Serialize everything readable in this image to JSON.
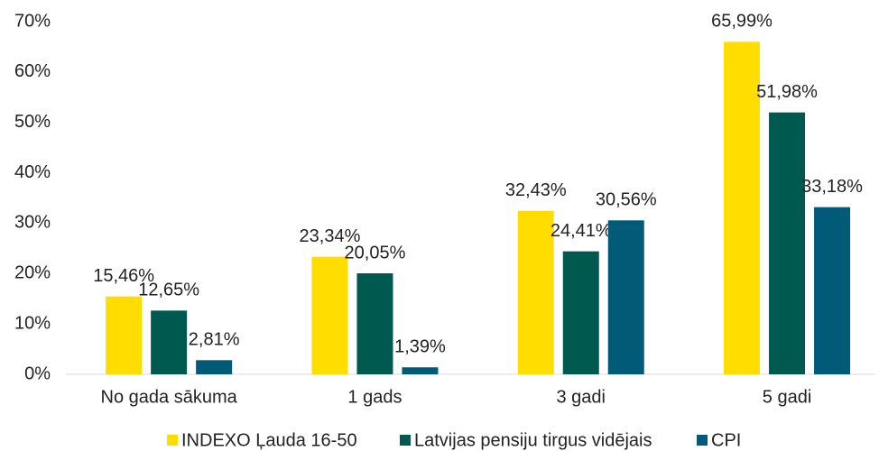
{
  "chart_data": {
    "type": "bar",
    "categories": [
      "No gada sākuma",
      "1 gads",
      "3 gadi",
      "5 gadi"
    ],
    "series": [
      {
        "name": "INDEXO Ļauda 16-50",
        "color": "#ffdd00",
        "values": [
          15.46,
          23.34,
          32.43,
          65.99
        ],
        "value_labels": [
          "15,46%",
          "23,34%",
          "32,43%",
          "65,99%"
        ]
      },
      {
        "name": "Latvijas pensiju tirgus vidējais",
        "color": "#00594f",
        "values": [
          12.65,
          20.05,
          24.41,
          51.98
        ],
        "value_labels": [
          "12,65%",
          "20,05%",
          "24,41%",
          "51,98%"
        ]
      },
      {
        "name": "CPI",
        "color": "#005a78",
        "values": [
          2.81,
          1.39,
          30.56,
          33.18
        ],
        "value_labels": [
          "2,81%",
          "1,39%",
          "30,56%",
          "33,18%"
        ]
      }
    ],
    "ylim": [
      0,
      70
    ],
    "yticks": [
      {
        "value": 0,
        "label": "0%"
      },
      {
        "value": 10,
        "label": "10%"
      },
      {
        "value": 20,
        "label": "20%"
      },
      {
        "value": 30,
        "label": "30%"
      },
      {
        "value": 40,
        "label": "40%"
      },
      {
        "value": 50,
        "label": "50%"
      },
      {
        "value": 60,
        "label": "60%"
      },
      {
        "value": 70,
        "label": "70%"
      }
    ],
    "grid": false,
    "legend": "bottom"
  }
}
